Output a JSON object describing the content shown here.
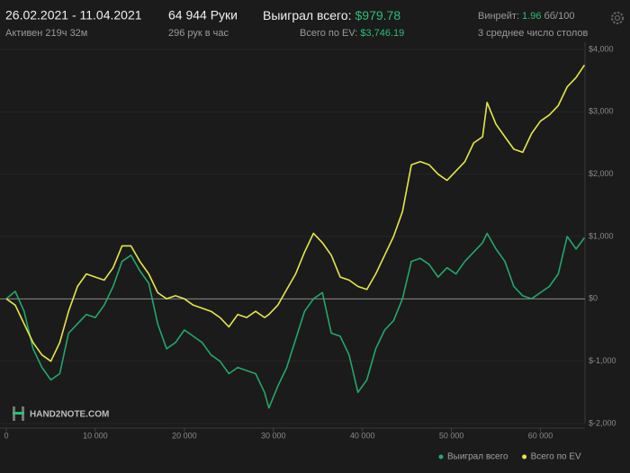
{
  "header": {
    "period": "26.02.2021 - 11.04.2021",
    "active": "Активен 219ч 32м",
    "hands": "64 944 Руки",
    "hands_per_hour": "296 рук в час",
    "won_label": "Выиграл всего:",
    "won_value": "$979.78",
    "ev_label": "Всего по EV:",
    "ev_value": "$3,746.19",
    "winrate_label": "Винрейт:",
    "winrate_value": "1.96",
    "winrate_unit": "бб/100",
    "tables": "3 среднее число столов",
    "logo": "HAND2NOTE.COM"
  },
  "chart_data": {
    "type": "line",
    "x": [
      0,
      1000,
      2000,
      3000,
      4000,
      5000,
      6000,
      7000,
      8000,
      9000,
      10000,
      11000,
      12000,
      13000,
      14000,
      15000,
      16000,
      17000,
      18000,
      19000,
      20000,
      21000,
      22000,
      23000,
      24000,
      25000,
      26000,
      27000,
      28000,
      29000,
      29500,
      30500,
      31500,
      32500,
      33500,
      34500,
      35500,
      36500,
      37500,
      38500,
      39500,
      40500,
      41500,
      42500,
      43500,
      44500,
      45500,
      46500,
      47500,
      48500,
      49500,
      50500,
      51500,
      52500,
      53500,
      54000,
      55000,
      56000,
      57000,
      58000,
      59000,
      60000,
      61000,
      62000,
      63000,
      64000,
      64944
    ],
    "series": [
      {
        "name": "Выиграл всего",
        "color": "#23a76b",
        "values": [
          0,
          120,
          -200,
          -800,
          -1100,
          -1300,
          -1200,
          -550,
          -400,
          -250,
          -300,
          -100,
          200,
          600,
          700,
          450,
          250,
          -400,
          -800,
          -700,
          -500,
          -600,
          -700,
          -900,
          -1000,
          -1200,
          -1100,
          -1150,
          -1200,
          -1500,
          -1750,
          -1400,
          -1100,
          -650,
          -200,
          0,
          100,
          -550,
          -600,
          -900,
          -1500,
          -1300,
          -800,
          -500,
          -350,
          0,
          600,
          650,
          550,
          350,
          500,
          400,
          600,
          750,
          900,
          1050,
          800,
          600,
          200,
          50,
          0,
          100,
          200,
          400,
          1000,
          800,
          980
        ]
      },
      {
        "name": "Всего по EV",
        "color": "#e6e64a",
        "values": [
          0,
          -100,
          -400,
          -700,
          -900,
          -1000,
          -700,
          -200,
          200,
          400,
          350,
          300,
          500,
          850,
          850,
          600,
          400,
          100,
          0,
          50,
          0,
          -100,
          -150,
          -200,
          -300,
          -450,
          -250,
          -300,
          -200,
          -300,
          -250,
          -100,
          150,
          400,
          750,
          1050,
          900,
          700,
          350,
          300,
          200,
          150,
          400,
          700,
          1000,
          1400,
          2150,
          2200,
          2150,
          2000,
          1900,
          2050,
          2200,
          2500,
          2600,
          3150,
          2800,
          2600,
          2400,
          2350,
          2650,
          2850,
          2950,
          3100,
          3400,
          3550,
          3750
        ]
      }
    ],
    "xlim": [
      0,
      65000
    ],
    "xticks": [
      0,
      {
        "value": 10000,
        "label": "10 000"
      },
      {
        "value": 20000,
        "label": "20 000"
      },
      {
        "value": 30000,
        "label": "30 000"
      },
      {
        "value": 40000,
        "label": "40 000"
      },
      {
        "value": 50000,
        "label": "50 000"
      },
      {
        "value": 60000,
        "label": "60 000"
      }
    ],
    "ylim": [
      -2000,
      4000
    ],
    "yticks": [
      {
        "value": -2000,
        "label": "$-2,000"
      },
      {
        "value": -1000,
        "label": "$-1,000"
      },
      {
        "value": 0,
        "label": "$0"
      },
      {
        "value": 1000,
        "label": "$1,000"
      },
      {
        "value": 2000,
        "label": "$2,000"
      },
      {
        "value": 3000,
        "label": "$3,000"
      },
      {
        "value": 4000,
        "label": "$4,000"
      }
    ],
    "grid": true
  }
}
